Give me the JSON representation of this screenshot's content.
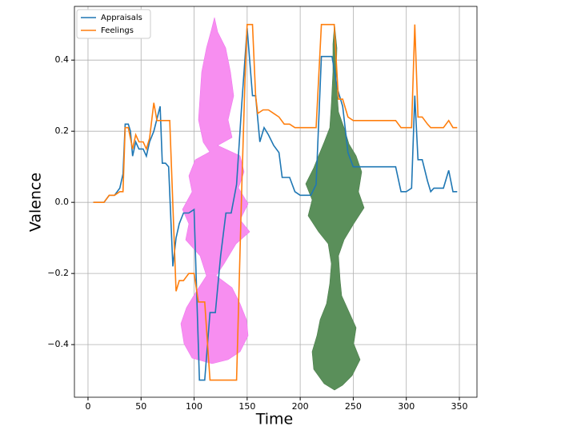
{
  "chart_data": {
    "type": "line",
    "xlabel": "Time",
    "ylabel": "Valence",
    "xlim": [
      -12.8,
      366.6
    ],
    "ylim": [
      -0.548,
      0.551
    ],
    "xticks": [
      0,
      50,
      100,
      150,
      200,
      250,
      300,
      350
    ],
    "yticks": [
      {
        "value": -0.4,
        "label": "−0.4"
      },
      {
        "value": -0.2,
        "label": "−0.2"
      },
      {
        "value": 0,
        "label": "0.0"
      },
      0.2,
      0.4
    ],
    "grid": true,
    "legend": "upper left",
    "series": [
      {
        "name": "Appraisals",
        "color": "#1f77b4",
        "x": [
          5,
          10,
          15,
          20,
          25,
          30,
          33,
          35,
          38,
          40,
          42,
          45,
          48,
          52,
          55,
          58,
          62,
          68,
          70,
          73,
          76,
          80,
          83,
          86,
          90,
          95,
          100,
          105,
          110,
          115,
          120,
          125,
          130,
          135,
          140,
          145,
          150,
          155,
          158,
          162,
          166,
          170,
          175,
          180,
          183,
          190,
          195,
          200,
          210,
          215,
          220,
          225,
          230,
          235,
          240,
          245,
          250,
          260,
          280,
          290,
          295,
          300,
          305,
          308,
          311,
          315,
          320,
          323,
          326,
          330,
          335,
          340,
          344,
          348
        ],
        "values": [
          0,
          0,
          0,
          0.02,
          0.02,
          0.04,
          0.08,
          0.22,
          0.22,
          0.2,
          0.13,
          0.17,
          0.15,
          0.15,
          0.13,
          0.17,
          0.2,
          0.27,
          0.11,
          0.11,
          0.1,
          -0.18,
          -0.1,
          -0.06,
          -0.03,
          -0.03,
          -0.02,
          -0.5,
          -0.5,
          -0.31,
          -0.31,
          -0.15,
          -0.03,
          -0.03,
          0.05,
          0.28,
          0.49,
          0.3,
          0.3,
          0.17,
          0.21,
          0.19,
          0.16,
          0.14,
          0.07,
          0.07,
          0.03,
          0.02,
          0.02,
          0.05,
          0.41,
          0.41,
          0.41,
          0.32,
          0.27,
          0.14,
          0.1,
          0.1,
          0.1,
          0.1,
          0.03,
          0.03,
          0.04,
          0.3,
          0.12,
          0.12,
          0.06,
          0.03,
          0.04,
          0.04,
          0.04,
          0.09,
          0.03,
          0.03
        ]
      },
      {
        "name": "Feelings",
        "color": "#ff7f0e",
        "x": [
          5,
          15,
          20,
          25,
          30,
          33,
          35,
          38,
          42,
          45,
          48,
          52,
          55,
          58,
          62,
          65,
          70,
          73,
          77,
          83,
          86,
          90,
          95,
          100,
          104,
          110,
          115,
          120,
          125,
          140,
          145,
          148,
          150,
          155,
          158,
          160,
          165,
          170,
          175,
          180,
          185,
          190,
          195,
          200,
          210,
          215,
          220,
          228,
          232,
          236,
          240,
          245,
          250,
          260,
          280,
          290,
          295,
          300,
          305,
          308,
          311,
          315,
          320,
          323,
          330,
          335,
          340,
          344,
          348
        ],
        "values": [
          0,
          0,
          0.02,
          0.02,
          0.03,
          0.03,
          0.21,
          0.21,
          0.15,
          0.19,
          0.17,
          0.17,
          0.15,
          0.18,
          0.28,
          0.23,
          0.23,
          0.23,
          0.23,
          -0.25,
          -0.22,
          -0.22,
          -0.2,
          -0.2,
          -0.28,
          -0.28,
          -0.5,
          -0.5,
          -0.5,
          -0.5,
          0.05,
          0.35,
          0.5,
          0.5,
          0.3,
          0.25,
          0.26,
          0.26,
          0.25,
          0.24,
          0.22,
          0.22,
          0.21,
          0.21,
          0.21,
          0.21,
          0.5,
          0.5,
          0.5,
          0.29,
          0.29,
          0.24,
          0.23,
          0.23,
          0.23,
          0.23,
          0.21,
          0.21,
          0.21,
          0.5,
          0.24,
          0.24,
          0.22,
          0.21,
          0.21,
          0.21,
          0.23,
          0.21,
          0.21
        ]
      }
    ]
  }
}
